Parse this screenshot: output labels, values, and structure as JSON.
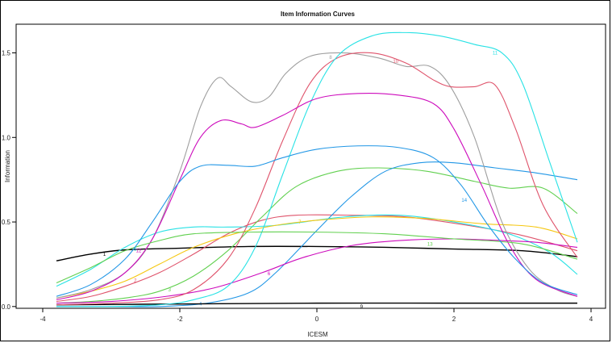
{
  "chart_data": {
    "type": "line",
    "title": "Item Information Curves",
    "xlabel": "ICESM",
    "ylabel": "Information",
    "xlim": [
      -4,
      4
    ],
    "ylim": [
      -0.02,
      1.66
    ],
    "x_ticks": [
      -4,
      -2,
      0,
      2,
      4
    ],
    "y_ticks": [
      0.0,
      0.5,
      1.0,
      1.5
    ],
    "x_tick_labels": [
      "-4",
      "-2",
      "0",
      "2",
      "4"
    ],
    "y_tick_labels": [
      "0.0",
      "0.5",
      "1.0",
      "1.5"
    ],
    "grid": false,
    "legend": "none",
    "series": [
      {
        "name": "1",
        "color": "#000000",
        "label_at": [
          -3.1,
          0.31
        ],
        "points": [
          [
            -3.8,
            0.27
          ],
          [
            -3.3,
            0.31
          ],
          [
            -2.8,
            0.335
          ],
          [
            -2.0,
            0.345
          ],
          [
            -1.0,
            0.355
          ],
          [
            0.0,
            0.355
          ],
          [
            1.0,
            0.35
          ],
          [
            2.0,
            0.34
          ],
          [
            3.0,
            0.33
          ],
          [
            3.8,
            0.295
          ]
        ]
      },
      {
        "name": "2",
        "color": "#DF536B",
        "label_at": [
          -2.65,
          0.155
        ],
        "points": [
          [
            -3.8,
            0.03
          ],
          [
            -3.3,
            0.06
          ],
          [
            -2.8,
            0.12
          ],
          [
            -2.3,
            0.2
          ],
          [
            -1.8,
            0.31
          ],
          [
            -1.3,
            0.43
          ],
          [
            -0.8,
            0.51
          ],
          [
            -0.3,
            0.54
          ],
          [
            0.5,
            0.54
          ],
          [
            1.3,
            0.53
          ],
          [
            2.2,
            0.48
          ],
          [
            3.0,
            0.42
          ],
          [
            3.8,
            0.33
          ]
        ]
      },
      {
        "name": "3",
        "color": "#61D04F",
        "label_at": [
          -2.15,
          0.1
        ],
        "points": [
          [
            -3.8,
            0.02
          ],
          [
            -3.3,
            0.03
          ],
          [
            -2.8,
            0.05
          ],
          [
            -2.3,
            0.09
          ],
          [
            -1.8,
            0.18
          ],
          [
            -1.3,
            0.33
          ],
          [
            -0.8,
            0.53
          ],
          [
            -0.3,
            0.71
          ],
          [
            0.3,
            0.8
          ],
          [
            0.9,
            0.82
          ],
          [
            1.6,
            0.8
          ],
          [
            2.3,
            0.74
          ],
          [
            2.8,
            0.7
          ],
          [
            3.3,
            0.7
          ],
          [
            3.8,
            0.55
          ]
        ]
      },
      {
        "name": "4",
        "color": "#2297E6",
        "label_at": [
          -1.7,
          0.015
        ],
        "points": [
          [
            -3.8,
            0.0
          ],
          [
            -3.0,
            0.0
          ],
          [
            -2.3,
            0.0
          ],
          [
            -1.6,
            0.02
          ],
          [
            -1.0,
            0.08
          ],
          [
            -0.6,
            0.2
          ],
          [
            0.0,
            0.45
          ],
          [
            0.5,
            0.65
          ],
          [
            1.0,
            0.8
          ],
          [
            1.5,
            0.85
          ],
          [
            2.0,
            0.85
          ],
          [
            2.6,
            0.82
          ],
          [
            3.2,
            0.79
          ],
          [
            3.8,
            0.75
          ]
        ]
      },
      {
        "name": "5",
        "color": "#28E2E5",
        "label_at": [
          -2.65,
          0.34
        ],
        "points": [
          [
            -3.8,
            0.12
          ],
          [
            -3.3,
            0.22
          ],
          [
            -2.8,
            0.35
          ],
          [
            -2.3,
            0.44
          ],
          [
            -1.8,
            0.47
          ],
          [
            -1.3,
            0.47
          ],
          [
            -0.6,
            0.48
          ],
          [
            0.4,
            0.53
          ],
          [
            1.2,
            0.54
          ],
          [
            2.0,
            0.5
          ],
          [
            2.8,
            0.43
          ],
          [
            3.4,
            0.32
          ],
          [
            3.8,
            0.19
          ]
        ]
      },
      {
        "name": "6",
        "color": "#CD0BBC",
        "label_at": [
          -0.7,
          0.195
        ],
        "points": [
          [
            -3.8,
            0.02
          ],
          [
            -3.0,
            0.03
          ],
          [
            -2.2,
            0.06
          ],
          [
            -1.5,
            0.11
          ],
          [
            -0.8,
            0.2
          ],
          [
            -0.2,
            0.29
          ],
          [
            0.5,
            0.36
          ],
          [
            1.2,
            0.39
          ],
          [
            2.0,
            0.4
          ],
          [
            2.7,
            0.39
          ],
          [
            3.2,
            0.38
          ],
          [
            3.8,
            0.35
          ]
        ]
      },
      {
        "name": "7",
        "color": "#F5C710",
        "label_at": [
          -0.25,
          0.5
        ],
        "points": [
          [
            -3.8,
            0.05
          ],
          [
            -3.3,
            0.09
          ],
          [
            -2.8,
            0.15
          ],
          [
            -2.3,
            0.25
          ],
          [
            -1.8,
            0.35
          ],
          [
            -1.2,
            0.43
          ],
          [
            -0.6,
            0.48
          ],
          [
            0.0,
            0.51
          ],
          [
            0.8,
            0.53
          ],
          [
            1.6,
            0.52
          ],
          [
            2.4,
            0.49
          ],
          [
            3.2,
            0.47
          ],
          [
            3.8,
            0.4
          ]
        ]
      },
      {
        "name": "8",
        "color": "#9E9E9E",
        "label_at": [
          0.2,
          1.475
        ],
        "points": [
          [
            -3.8,
            0.05
          ],
          [
            -3.3,
            0.1
          ],
          [
            -2.8,
            0.2
          ],
          [
            -2.4,
            0.4
          ],
          [
            -2.0,
            0.8
          ],
          [
            -1.7,
            1.18
          ],
          [
            -1.45,
            1.35
          ],
          [
            -1.25,
            1.3
          ],
          [
            -0.95,
            1.21
          ],
          [
            -0.7,
            1.24
          ],
          [
            -0.45,
            1.38
          ],
          [
            -0.1,
            1.48
          ],
          [
            0.4,
            1.5
          ],
          [
            0.9,
            1.47
          ],
          [
            1.3,
            1.42
          ],
          [
            1.65,
            1.42
          ],
          [
            1.95,
            1.3
          ],
          [
            2.3,
            1.0
          ],
          [
            2.7,
            0.5
          ],
          [
            3.1,
            0.22
          ],
          [
            3.5,
            0.1
          ],
          [
            3.8,
            0.06
          ]
        ]
      },
      {
        "name": "9",
        "color": "#000000",
        "label_at": [
          0.65,
          0.0
        ],
        "points": [
          [
            -3.8,
            0.01
          ],
          [
            -2.0,
            0.015
          ],
          [
            0.0,
            0.02
          ],
          [
            2.0,
            0.02
          ],
          [
            3.8,
            0.02
          ]
        ]
      },
      {
        "name": "10",
        "color": "#DF536B",
        "label_at": [
          1.15,
          1.45
        ],
        "points": [
          [
            -3.8,
            0.01
          ],
          [
            -3.0,
            0.02
          ],
          [
            -2.3,
            0.04
          ],
          [
            -1.8,
            0.1
          ],
          [
            -1.3,
            0.28
          ],
          [
            -0.9,
            0.58
          ],
          [
            -0.5,
            0.98
          ],
          [
            -0.1,
            1.32
          ],
          [
            0.3,
            1.47
          ],
          [
            0.8,
            1.5
          ],
          [
            1.3,
            1.44
          ],
          [
            1.7,
            1.34
          ],
          [
            1.95,
            1.3
          ],
          [
            2.3,
            1.3
          ],
          [
            2.6,
            1.31
          ],
          [
            2.9,
            1.05
          ],
          [
            3.3,
            0.6
          ],
          [
            3.8,
            0.29
          ]
        ]
      },
      {
        "name": "11",
        "color": "#28E2E5",
        "label_at": [
          2.6,
          1.5
        ],
        "points": [
          [
            -3.8,
            0.0
          ],
          [
            -3.0,
            0.0
          ],
          [
            -2.3,
            0.01
          ],
          [
            -1.8,
            0.04
          ],
          [
            -1.3,
            0.12
          ],
          [
            -0.9,
            0.35
          ],
          [
            -0.5,
            0.78
          ],
          [
            -0.1,
            1.2
          ],
          [
            0.3,
            1.48
          ],
          [
            0.8,
            1.6
          ],
          [
            1.3,
            1.62
          ],
          [
            1.8,
            1.6
          ],
          [
            2.3,
            1.55
          ],
          [
            2.7,
            1.5
          ],
          [
            3.0,
            1.32
          ],
          [
            3.4,
            0.85
          ],
          [
            3.8,
            0.38
          ]
        ]
      },
      {
        "name": "12",
        "color": "#CD0BBC",
        "label_at": [
          -2.6,
          0.33
        ],
        "points": [
          [
            -3.8,
            0.04
          ],
          [
            -3.3,
            0.09
          ],
          [
            -2.8,
            0.2
          ],
          [
            -2.4,
            0.4
          ],
          [
            -2.0,
            0.75
          ],
          [
            -1.7,
            1.0
          ],
          [
            -1.4,
            1.1
          ],
          [
            -1.1,
            1.08
          ],
          [
            -0.9,
            1.06
          ],
          [
            -0.5,
            1.13
          ],
          [
            0.0,
            1.23
          ],
          [
            0.6,
            1.26
          ],
          [
            1.2,
            1.25
          ],
          [
            1.7,
            1.2
          ],
          [
            2.0,
            1.05
          ],
          [
            2.4,
            0.72
          ],
          [
            2.8,
            0.37
          ],
          [
            3.2,
            0.16
          ],
          [
            3.8,
            0.06
          ]
        ]
      },
      {
        "name": "13",
        "color": "#61D04F",
        "label_at": [
          1.65,
          0.37
        ],
        "points": [
          [
            -3.8,
            0.14
          ],
          [
            -3.3,
            0.23
          ],
          [
            -2.8,
            0.33
          ],
          [
            -2.3,
            0.39
          ],
          [
            -1.8,
            0.43
          ],
          [
            -1.0,
            0.44
          ],
          [
            0.0,
            0.44
          ],
          [
            1.0,
            0.43
          ],
          [
            2.0,
            0.4
          ],
          [
            3.0,
            0.37
          ],
          [
            3.8,
            0.28
          ]
        ]
      },
      {
        "name": "14",
        "color": "#2297E6",
        "label_at": [
          2.15,
          0.63
        ],
        "points": [
          [
            -3.8,
            0.06
          ],
          [
            -3.3,
            0.13
          ],
          [
            -2.8,
            0.28
          ],
          [
            -2.4,
            0.5
          ],
          [
            -2.0,
            0.74
          ],
          [
            -1.7,
            0.83
          ],
          [
            -1.3,
            0.835
          ],
          [
            -0.9,
            0.83
          ],
          [
            -0.5,
            0.88
          ],
          [
            0.0,
            0.93
          ],
          [
            0.6,
            0.95
          ],
          [
            1.2,
            0.94
          ],
          [
            1.7,
            0.88
          ],
          [
            2.1,
            0.72
          ],
          [
            2.5,
            0.48
          ],
          [
            2.9,
            0.28
          ],
          [
            3.3,
            0.14
          ],
          [
            3.8,
            0.07
          ]
        ]
      }
    ]
  }
}
